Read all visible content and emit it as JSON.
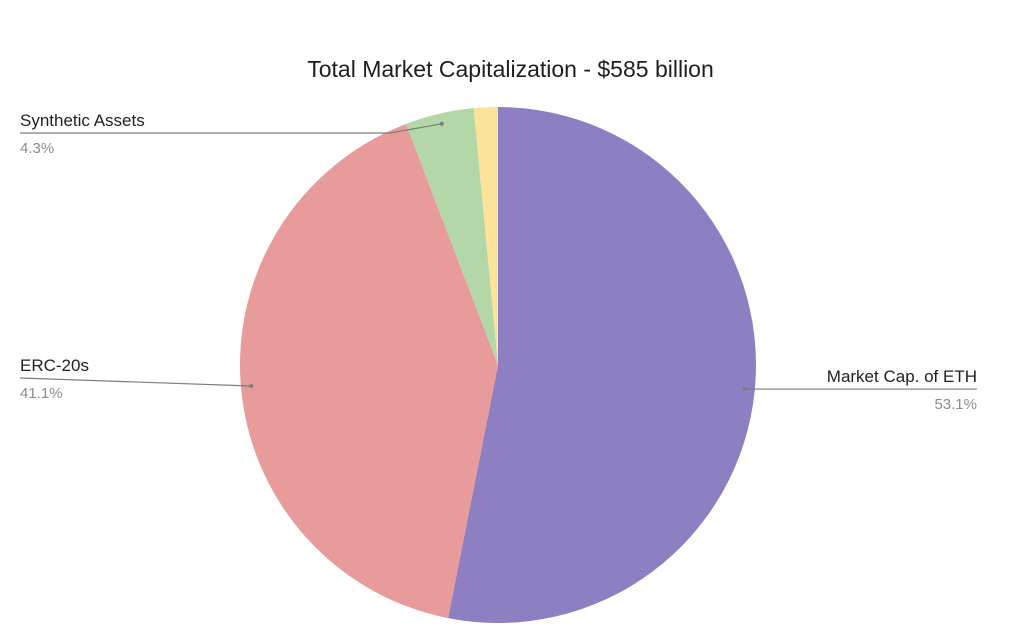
{
  "chart_data": {
    "type": "pie",
    "title": "Total Market Capitalization - $585 billion",
    "start_angle_deg": 0,
    "direction": "clockwise",
    "slices": [
      {
        "label": "Market Cap. of ETH",
        "value": 53.1,
        "display": "53.1%",
        "color": "#8e7fc3",
        "label_side": "right"
      },
      {
        "label": "ERC-20s",
        "value": 41.1,
        "display": "41.1%",
        "color": "#e89b9b",
        "label_side": "left"
      },
      {
        "label": "Synthetic Assets",
        "value": 4.3,
        "display": "4.3%",
        "color": "#b4d7a7",
        "label_side": "left"
      },
      {
        "label": "",
        "value": 1.5,
        "display": "",
        "color": "#fbe49a",
        "label_side": "none"
      }
    ],
    "legend": "none"
  }
}
